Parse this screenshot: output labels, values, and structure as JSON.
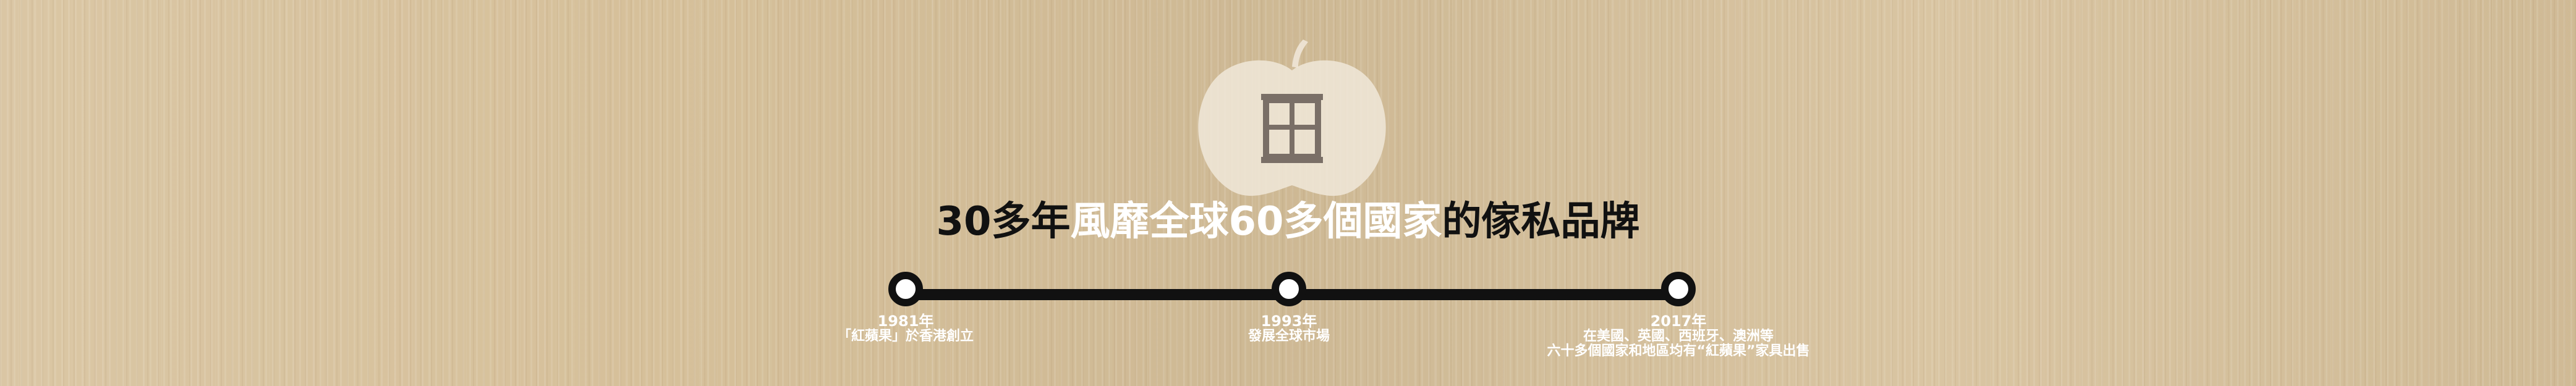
{
  "headline": {
    "part1": "30多年",
    "part2": "風靡全球60多個國家",
    "part3": "的傢私品牌"
  },
  "timeline": {
    "events": [
      {
        "year": "1981年",
        "lines": [
          "「紅蘋果」於香港創立"
        ]
      },
      {
        "year": "1993年",
        "lines": [
          "發展全球市場"
        ]
      },
      {
        "year": "2017年",
        "lines": [
          "在美國、英國、西班牙、澳洲等",
          "六十多個國家和地區均有“紅蘋果”家具出售"
        ]
      }
    ]
  },
  "colors": {
    "wood": "#d6c09a",
    "logo_fill": "#efe6d7",
    "logo_icon": "#7a6f67",
    "timeline": "#111111",
    "node_fill": "#ffffff",
    "text_light": "#ffffff",
    "text_dark": "#111111"
  },
  "icons": {
    "logo": "apple-window-logo-icon"
  }
}
